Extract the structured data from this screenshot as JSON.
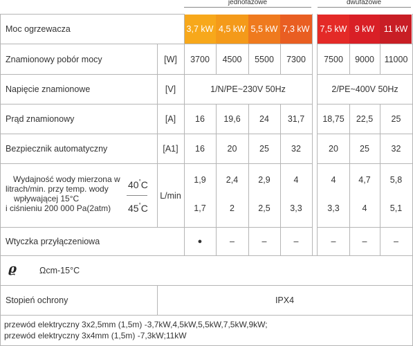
{
  "groups": {
    "single_phase": "jednofazowe",
    "three_phase": "dwufazowe"
  },
  "colors": {
    "single": [
      "#f7a81b",
      "#f49a1a",
      "#ef7a1e",
      "#e95e22"
    ],
    "double": [
      "#e42a27",
      "#d91f26",
      "#c81e25"
    ],
    "grid": "#b5b5b5"
  },
  "header": {
    "label": "Moc ogrzewacza",
    "powers": [
      "3,7 kW",
      "4,5 kW",
      "5,5 kW",
      "7,3 kW",
      "7,5 kW",
      "9 kW",
      "11 kW"
    ]
  },
  "rows": {
    "rated_power": {
      "label": "Znamionowy pobór mocy",
      "unit": "[W]",
      "values": [
        "3700",
        "4500",
        "5500",
        "7300",
        "7500",
        "9000",
        "11000"
      ]
    },
    "voltage": {
      "label": "Napięcie znamionowe",
      "unit": "[V]",
      "single": "1/N/PE~230V 50Hz",
      "double": "2/PE~400V 50Hz"
    },
    "current": {
      "label": "Prąd znamionowy",
      "unit": "[A]",
      "values": [
        "16",
        "19,6",
        "24",
        "31,7",
        "18,75",
        "22,5",
        "25"
      ]
    },
    "breaker": {
      "label": "Bezpiecznik automatyczny",
      "unit": "[A1]",
      "values": [
        "16",
        "20",
        "25",
        "32",
        "20",
        "25",
        "32"
      ]
    },
    "flow": {
      "label_lines": [
        "Wydajność wody mierzona w",
        "litrach/min. przy temp. wody",
        "wpływającej 15°C",
        "i ciśnieniu 200 000 Pa(2atm)"
      ],
      "temp_40": "40",
      "temp_45": "45",
      "degree_unit": "C",
      "degree_symbol": "°",
      "unit": "L/min",
      "values_40": [
        "1,9",
        "2,4",
        "2,9",
        "4",
        "4",
        "4,7",
        "5,8"
      ],
      "values_45": [
        "1,7",
        "2",
        "2,5",
        "3,3",
        "3,3",
        "4",
        "5,1"
      ]
    },
    "plug": {
      "label": "Wtyczka przyłączeniowa",
      "values": [
        "●",
        "–",
        "–",
        "–",
        "–",
        "–",
        "–"
      ]
    },
    "resistivity": {
      "symbol": "ϱ",
      "label": "Ωcm-15°C"
    },
    "protection": {
      "label": "Stopień ochrony",
      "value": "IPX4"
    },
    "notes": [
      "przewód elektryczny 3x2,5mm (1,5m) -3,7kW,4,5kW,5,5kW,7,5kW,9kW;",
      "przewód elektryczny 3x4mm (1,5m) -7,3kW;11kW"
    ]
  }
}
